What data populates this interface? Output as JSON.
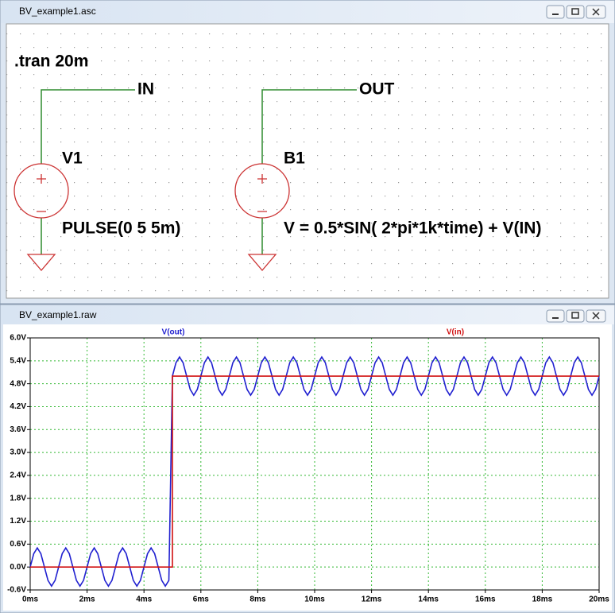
{
  "schematic": {
    "title": "BV_example1.asc",
    "directive": ".tran 20m",
    "nets": [
      "IN",
      "OUT"
    ],
    "components": [
      {
        "name": "V1",
        "value": "PULSE(0 5 5m)"
      },
      {
        "name": "B1",
        "value": "V = 0.5*SIN( 2*pi*1k*time)  + V(IN)"
      }
    ]
  },
  "plot": {
    "title": "BV_example1.raw"
  },
  "chart_data": {
    "type": "line",
    "x": [
      0,
      0.125,
      0.25,
      0.375,
      0.5,
      0.625,
      0.75,
      0.875,
      1,
      1.125,
      1.25,
      1.375,
      1.5,
      1.625,
      1.75,
      1.875,
      2,
      2.125,
      2.25,
      2.375,
      2.5,
      2.625,
      2.75,
      2.875,
      3,
      3.125,
      3.25,
      3.375,
      3.5,
      3.625,
      3.75,
      3.875,
      4,
      4.125,
      4.25,
      4.375,
      4.5,
      4.625,
      4.75,
      4.875,
      5,
      5.125,
      5.25,
      5.375,
      5.5,
      5.625,
      5.75,
      5.875,
      6,
      6.125,
      6.25,
      6.375,
      6.5,
      6.625,
      6.75,
      6.875,
      7,
      7.125,
      7.25,
      7.375,
      7.5,
      7.625,
      7.75,
      7.875,
      8,
      8.125,
      8.25,
      8.375,
      8.5,
      8.625,
      8.75,
      8.875,
      9,
      9.125,
      9.25,
      9.375,
      9.5,
      9.625,
      9.75,
      9.875,
      10,
      10.125,
      10.25,
      10.375,
      10.5,
      10.625,
      10.75,
      10.875,
      11,
      11.125,
      11.25,
      11.375,
      11.5,
      11.625,
      11.75,
      11.875,
      12,
      12.125,
      12.25,
      12.375,
      12.5,
      12.625,
      12.75,
      12.875,
      13,
      13.125,
      13.25,
      13.375,
      13.5,
      13.625,
      13.75,
      13.875,
      14,
      14.125,
      14.25,
      14.375,
      14.5,
      14.625,
      14.75,
      14.875,
      15,
      15.125,
      15.25,
      15.375,
      15.5,
      15.625,
      15.75,
      15.875,
      16,
      16.125,
      16.25,
      16.375,
      16.5,
      16.625,
      16.75,
      16.875,
      17,
      17.125,
      17.25,
      17.375,
      17.5,
      17.625,
      17.75,
      17.875,
      18,
      18.125,
      18.25,
      18.375,
      18.5,
      18.625,
      18.75,
      18.875,
      19,
      19.125,
      19.25,
      19.375,
      19.5,
      19.625,
      19.75,
      19.875,
      20
    ],
    "series": [
      {
        "name": "V(out)",
        "color": "#2020d0",
        "values": [
          0,
          0.35,
          0.5,
          0.35,
          0,
          -0.35,
          -0.5,
          -0.35,
          0,
          0.35,
          0.5,
          0.35,
          0,
          -0.35,
          -0.5,
          -0.35,
          0,
          0.35,
          0.5,
          0.35,
          0,
          -0.35,
          -0.5,
          -0.35,
          0,
          0.35,
          0.5,
          0.35,
          0,
          -0.35,
          -0.5,
          -0.35,
          0,
          0.35,
          0.5,
          0.35,
          0,
          -0.35,
          -0.5,
          -0.35,
          5,
          5.35,
          5.5,
          5.35,
          5,
          4.65,
          4.5,
          4.65,
          5,
          5.35,
          5.5,
          5.35,
          5,
          4.65,
          4.5,
          4.65,
          5,
          5.35,
          5.5,
          5.35,
          5,
          4.65,
          4.5,
          4.65,
          5,
          5.35,
          5.5,
          5.35,
          5,
          4.65,
          4.5,
          4.65,
          5,
          5.35,
          5.5,
          5.35,
          5,
          4.65,
          4.5,
          4.65,
          5,
          5.35,
          5.5,
          5.35,
          5,
          4.65,
          4.5,
          4.65,
          5,
          5.35,
          5.5,
          5.35,
          5,
          4.65,
          4.5,
          4.65,
          5,
          5.35,
          5.5,
          5.35,
          5,
          4.65,
          4.5,
          4.65,
          5,
          5.35,
          5.5,
          5.35,
          5,
          4.65,
          4.5,
          4.65,
          5,
          5.35,
          5.5,
          5.35,
          5,
          4.65,
          4.5,
          4.65,
          5,
          5.35,
          5.5,
          5.35,
          5,
          4.65,
          4.5,
          4.65,
          5,
          5.35,
          5.5,
          5.35,
          5,
          4.65,
          4.5,
          4.65,
          5,
          5.35,
          5.5,
          5.35,
          5,
          4.65,
          4.5,
          4.65,
          5,
          5.35,
          5.5,
          5.35,
          5,
          4.65,
          4.5,
          4.65,
          5,
          5.35,
          5.5,
          5.35,
          5,
          4.65,
          4.5,
          4.65,
          5
        ]
      },
      {
        "name": "V(in)",
        "color": "#d01010",
        "x": [
          0,
          5,
          5,
          20
        ],
        "values": [
          0,
          0,
          5,
          5
        ]
      }
    ],
    "xlim": [
      0,
      20
    ],
    "xticks": [
      {
        "value": 0,
        "label": "0ms"
      },
      {
        "value": 2,
        "label": "2ms"
      },
      {
        "value": 4,
        "label": "4ms"
      },
      {
        "value": 6,
        "label": "6ms"
      },
      {
        "value": 8,
        "label": "8ms"
      },
      {
        "value": 10,
        "label": "10ms"
      },
      {
        "value": 12,
        "label": "12ms"
      },
      {
        "value": 14,
        "label": "14ms"
      },
      {
        "value": 16,
        "label": "16ms"
      },
      {
        "value": 18,
        "label": "18ms"
      },
      {
        "value": 20,
        "label": "20ms"
      }
    ],
    "ylim": [
      -0.6,
      6.0
    ],
    "yticks": [
      {
        "value": -0.6,
        "label": "-0.6V"
      },
      {
        "value": 0,
        "label": "0.0V"
      },
      {
        "value": 0.6,
        "label": "0.6V"
      },
      {
        "value": 1.2,
        "label": "1.2V"
      },
      {
        "value": 1.8,
        "label": "1.8V"
      },
      {
        "value": 2.4,
        "label": "2.4V"
      },
      {
        "value": 3.0,
        "label": "3.0V"
      },
      {
        "value": 3.6,
        "label": "3.6V"
      },
      {
        "value": 4.2,
        "label": "4.2V"
      },
      {
        "value": 4.8,
        "label": "4.8V"
      },
      {
        "value": 5.4,
        "label": "5.4V"
      },
      {
        "value": 6.0,
        "label": "6.0V"
      }
    ],
    "grid": true
  }
}
